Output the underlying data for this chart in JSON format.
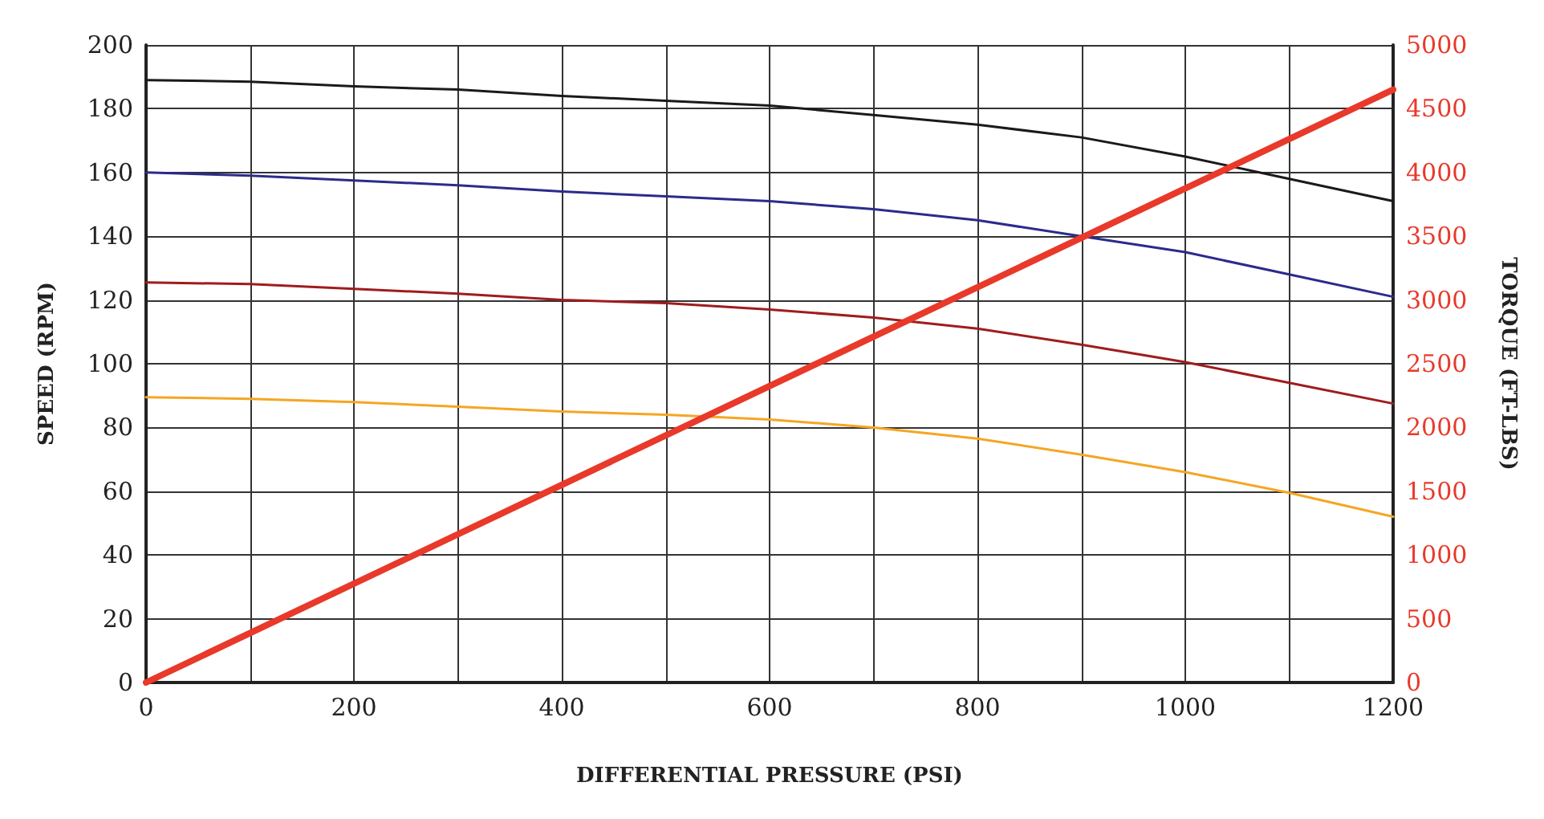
{
  "chart_data": {
    "type": "line",
    "xlabel": "DIFFERENTIAL PRESSURE (PSI)",
    "ylabel": "SPEED (RPM)",
    "y2label": "TORQUE (FT-LBS)",
    "x": [
      0,
      100,
      200,
      300,
      400,
      500,
      600,
      700,
      800,
      900,
      1000,
      1100,
      1200
    ],
    "series": [
      {
        "color": "#1a1a1a",
        "values": [
          189,
          188.5,
          187,
          186,
          184,
          182.5,
          181,
          178,
          175,
          171,
          165,
          158,
          151
        ]
      },
      {
        "color": "#2b2b8c",
        "values": [
          160,
          159,
          157.5,
          156,
          154,
          152.5,
          151,
          148.5,
          145,
          140,
          135,
          128,
          121
        ]
      },
      {
        "color": "#a01c1c",
        "values": [
          125.5,
          125,
          123.5,
          122,
          120,
          119,
          117,
          114.5,
          111,
          106,
          100.5,
          94,
          87.5
        ]
      },
      {
        "color": "#f5a623",
        "values": [
          89.5,
          89,
          88,
          86.5,
          85,
          84,
          82.5,
          80,
          76.5,
          71.5,
          66,
          59.5,
          52
        ]
      },
      {
        "color": "#e8392a",
        "axis": "y2",
        "x": [
          0,
          1200
        ],
        "values": [
          0,
          4650
        ]
      }
    ],
    "xlim": [
      0,
      1200
    ],
    "xticks": [
      0,
      {
        "value": 100,
        "label": null
      },
      200,
      {
        "value": 300,
        "label": null
      },
      400,
      {
        "value": 500,
        "label": null
      },
      600,
      {
        "value": 700,
        "label": null
      },
      800,
      {
        "value": 900,
        "label": null
      },
      1000,
      {
        "value": 1100,
        "label": null
      },
      1200
    ],
    "ylim": [
      0,
      200
    ],
    "yticks": [
      0,
      20,
      40,
      60,
      80,
      100,
      120,
      140,
      160,
      180,
      200
    ],
    "y2lim": [
      0,
      5000
    ],
    "y2ticks": [
      0,
      500,
      1000,
      1500,
      2000,
      2500,
      3000,
      3500,
      4000,
      4500,
      5000
    ],
    "grid": true,
    "marker": "none",
    "line_style": "solid"
  }
}
